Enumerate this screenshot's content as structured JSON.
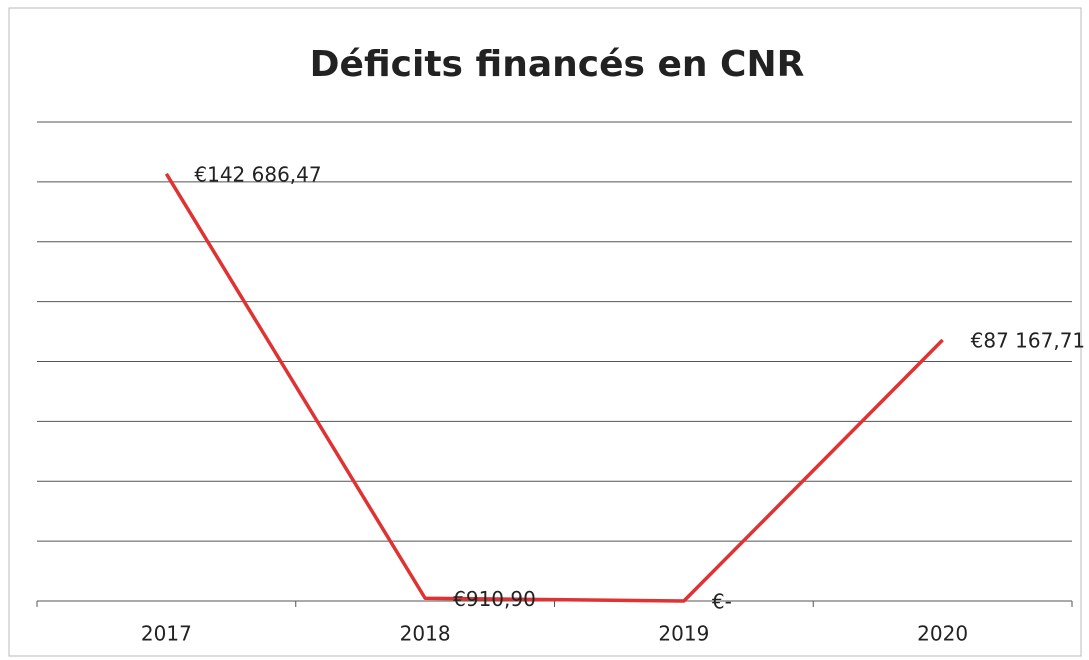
{
  "chart_data": {
    "type": "line",
    "title": "Déficits financés en CNR",
    "categories": [
      "2017",
      "2018",
      "2019",
      "2020"
    ],
    "series": [
      {
        "name": null,
        "color": "#e03232",
        "values": [
          142686.47,
          910.9,
          0,
          87167.71
        ],
        "value_labels": [
          "€142 686,47",
          "€910,90",
          "€-",
          "€87 167,71"
        ]
      }
    ],
    "ylim": [
      0,
      160000
    ],
    "yticks": [
      0,
      20000,
      40000,
      60000,
      80000,
      100000,
      120000,
      140000,
      160000
    ],
    "grid": true
  }
}
